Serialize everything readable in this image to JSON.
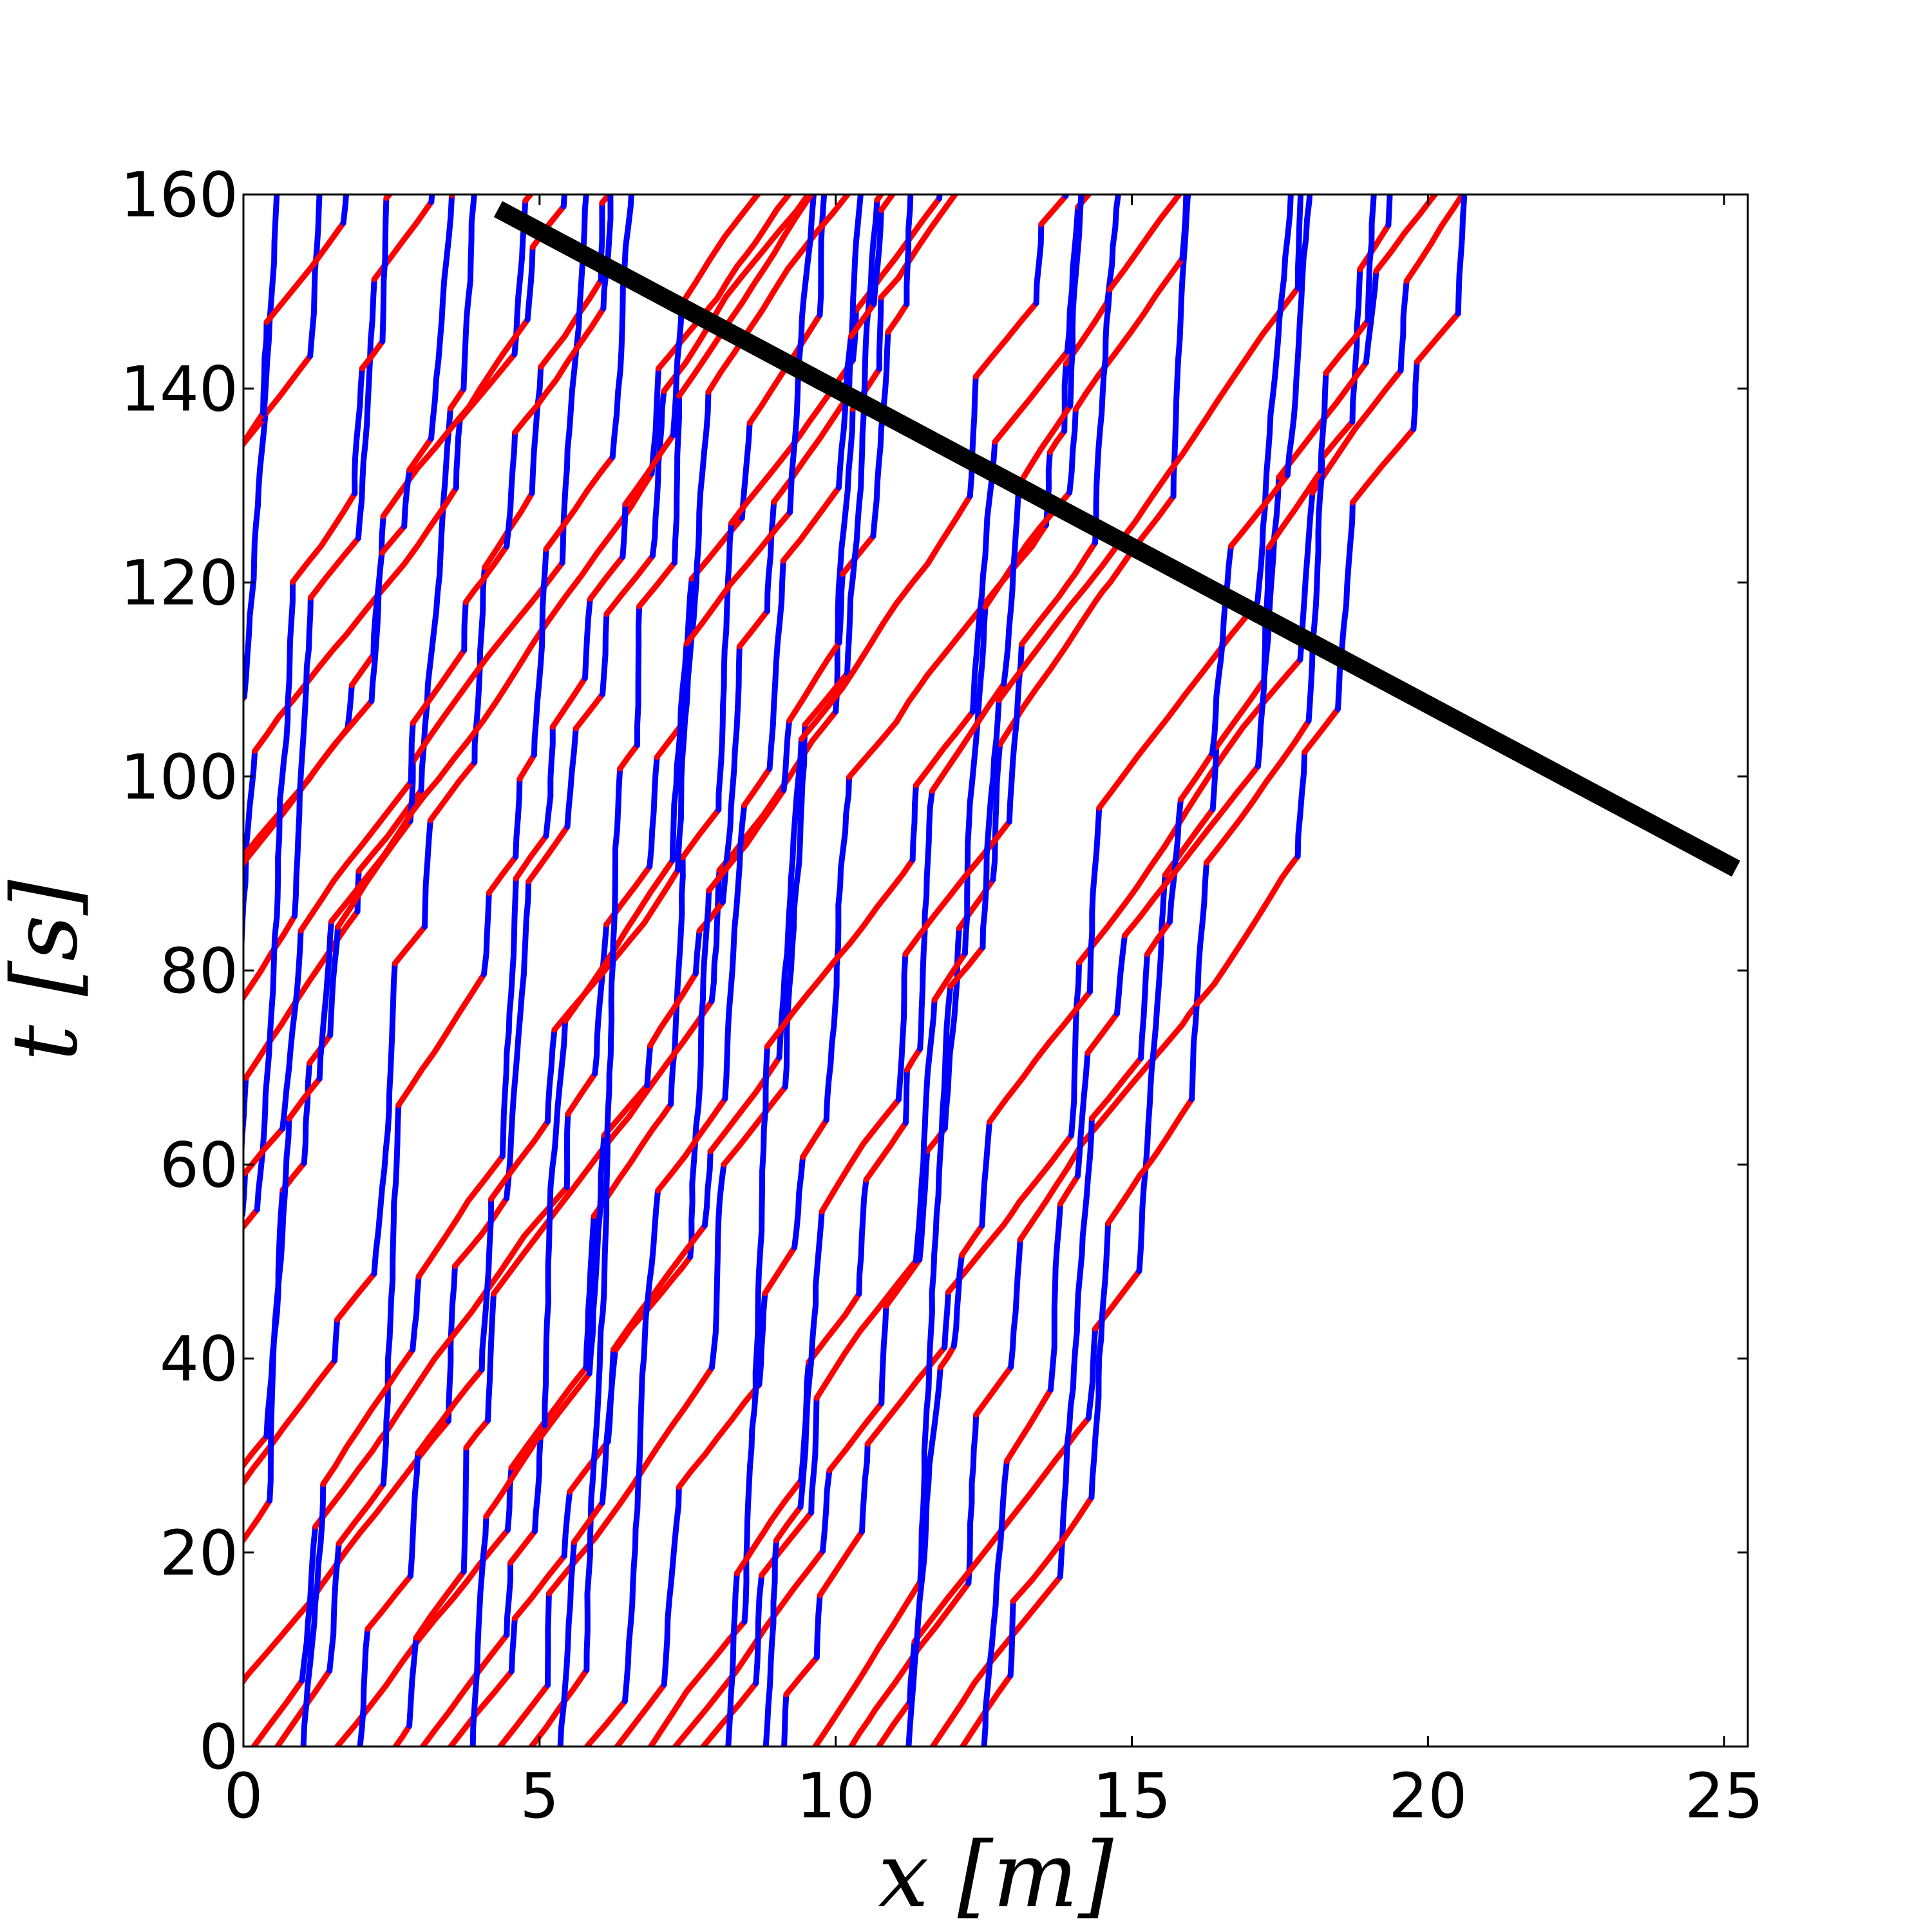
{
  "chart_data": {
    "type": "line",
    "xlabel": "x [m]",
    "ylabel": "t [s]",
    "xlim": [
      0,
      25.4
    ],
    "ylim": [
      0,
      160
    ],
    "x_ticks": [
      0,
      5,
      10,
      15,
      20,
      25
    ],
    "y_ticks": [
      0,
      20,
      40,
      60,
      80,
      100,
      120,
      140,
      160
    ],
    "x_tick_labels": [
      "0",
      "5",
      "10",
      "15",
      "20",
      "25"
    ],
    "y_tick_labels": [
      "0",
      "20",
      "40",
      "60",
      "80",
      "100",
      "120",
      "140",
      "160"
    ],
    "grid": false,
    "legend": "none",
    "colors": {
      "stopped_segments": "#0000ff",
      "moving_segments": "#ff0000",
      "reference_line": "#000000"
    },
    "trajectory_pattern": {
      "description_of_values": "vehicle trajectories: nearly vertical blue segments (slow) alternating with diagonal red segments (fast), drift to the right over time",
      "count": 52,
      "x_spacing_m": 0.48,
      "stopped_speed_m_per_s": 0.01,
      "moving_speed_m_per_s": 0.12
    },
    "series": [
      {
        "type": "reference_line",
        "x": [
          4.3,
          25.2
        ],
        "y": [
          158.5,
          90.5
        ]
      }
    ]
  }
}
